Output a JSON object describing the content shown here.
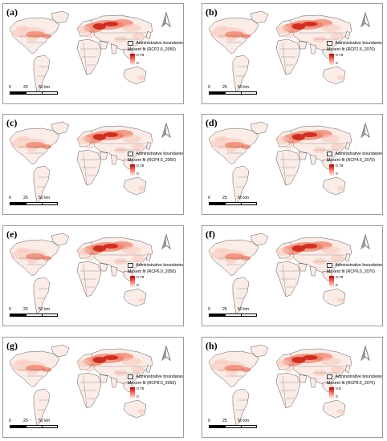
{
  "colors": {
    "land": "#fbece7",
    "border": "#5a5a5a",
    "suit_low": "#f8c9bc",
    "suit_mid": "#ee7a62",
    "suit_high": "#c81e12",
    "legend_gradient": [
      "#b30000",
      "#ff7f6e",
      "#ffffff"
    ]
  },
  "legend_common": {
    "boundary_label": "Administrative boundaries",
    "min_value": "0"
  },
  "scalebar": {
    "ticks": [
      "0",
      "25",
      "50 km"
    ]
  },
  "north_icon": "north-arrow-icon",
  "panels": [
    {
      "label": "(a)",
      "legend_title": "Maxent fit (RCP2.6_2050)",
      "max_value": "0.78",
      "intensity": 0.78
    },
    {
      "label": "(b)",
      "legend_title": "Maxent fit (RCP2.6_2070)",
      "max_value": "0.79",
      "intensity": 0.79
    },
    {
      "label": "(c)",
      "legend_title": "Maxent fit (RCP4.5_2050)",
      "max_value": "0.78",
      "intensity": 0.78
    },
    {
      "label": "(d)",
      "legend_title": "Maxent fit (RCP4.5_2070)",
      "max_value": "0.78",
      "intensity": 0.78
    },
    {
      "label": "(e)",
      "legend_title": "Maxent fit (RCP6.0_2050)",
      "max_value": "0.78",
      "intensity": 0.78
    },
    {
      "label": "(f)",
      "legend_title": "Maxent fit (RCP6.0_2070)",
      "max_value": "0.79",
      "intensity": 0.79
    },
    {
      "label": "(g)",
      "legend_title": "Maxent fit (RCP8.5_2050)",
      "max_value": "0.79",
      "intensity": 0.79
    },
    {
      "label": "(h)",
      "legend_title": "Maxent fit (RCP8.5_2070)",
      "max_value": "0.8",
      "intensity": 0.8
    }
  ]
}
